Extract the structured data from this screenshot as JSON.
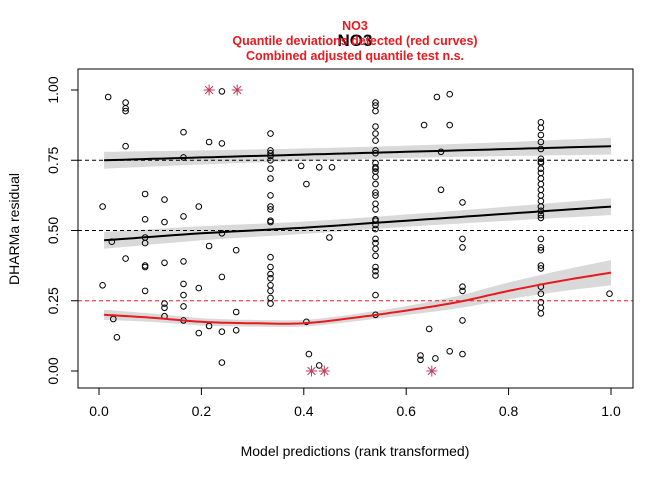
{
  "chart_data": {
    "type": "scatter",
    "title": "NO3",
    "subtitle_lines": [
      "NO3",
      "Quantile deviations detected (red curves)",
      "Combined adjusted quantile test n.s."
    ],
    "xlabel": "Model predictions (rank transformed)",
    "ylabel": "DHARMa residual",
    "xlim": [
      0,
      1
    ],
    "ylim": [
      0,
      1
    ],
    "x_ticks": [
      "0.0",
      "0.2",
      "0.4",
      "0.6",
      "0.8",
      "1.0"
    ],
    "y_ticks": [
      "0.00",
      "0.25",
      "0.50",
      "0.75",
      "1.00"
    ],
    "reference_lines": [
      0.25,
      0.5,
      0.75
    ],
    "colors": {
      "quantile_ok": "#000000",
      "quantile_deviation": "#e8191f",
      "band": "#d9d9d9",
      "outlier": "#c23b5a",
      "reference_ok": "#000000",
      "reference_deviation": "#e8191f"
    },
    "quantile_curves": [
      {
        "quantile": 0.25,
        "deviation": true,
        "x": [
          0.01,
          0.1,
          0.2,
          0.3,
          0.4,
          0.5,
          0.6,
          0.7,
          0.8,
          0.9,
          1.0
        ],
        "y": [
          0.2,
          0.19,
          0.175,
          0.17,
          0.17,
          0.19,
          0.215,
          0.245,
          0.285,
          0.32,
          0.35
        ],
        "band_halfwidth": [
          0.018,
          0.015,
          0.013,
          0.012,
          0.012,
          0.013,
          0.016,
          0.022,
          0.03,
          0.037,
          0.045
        ]
      },
      {
        "quantile": 0.5,
        "deviation": false,
        "x": [
          0.01,
          0.2,
          0.4,
          0.6,
          0.8,
          1.0
        ],
        "y": [
          0.465,
          0.49,
          0.51,
          0.535,
          0.56,
          0.585
        ],
        "band_halfwidth": [
          0.03,
          0.025,
          0.022,
          0.022,
          0.025,
          0.03
        ]
      },
      {
        "quantile": 0.75,
        "deviation": false,
        "x": [
          0.01,
          0.2,
          0.4,
          0.6,
          0.8,
          1.0
        ],
        "y": [
          0.75,
          0.76,
          0.77,
          0.78,
          0.79,
          0.8
        ],
        "band_halfwidth": [
          0.03,
          0.025,
          0.022,
          0.022,
          0.025,
          0.03
        ]
      }
    ],
    "points": [
      [
        0.007,
        0.585
      ],
      [
        0.007,
        0.305
      ],
      [
        0.018,
        0.975
      ],
      [
        0.025,
        0.46
      ],
      [
        0.028,
        0.185
      ],
      [
        0.035,
        0.12
      ],
      [
        0.052,
        0.955
      ],
      [
        0.052,
        0.935
      ],
      [
        0.052,
        0.925
      ],
      [
        0.052,
        0.8
      ],
      [
        0.052,
        0.4
      ],
      [
        0.09,
        0.63
      ],
      [
        0.09,
        0.54
      ],
      [
        0.09,
        0.475
      ],
      [
        0.09,
        0.455
      ],
      [
        0.09,
        0.375
      ],
      [
        0.09,
        0.37
      ],
      [
        0.09,
        0.285
      ],
      [
        0.128,
        0.61
      ],
      [
        0.128,
        0.53
      ],
      [
        0.128,
        0.385
      ],
      [
        0.128,
        0.24
      ],
      [
        0.128,
        0.225
      ],
      [
        0.128,
        0.195
      ],
      [
        0.165,
        0.85
      ],
      [
        0.165,
        0.76
      ],
      [
        0.165,
        0.55
      ],
      [
        0.165,
        0.39
      ],
      [
        0.165,
        0.31
      ],
      [
        0.165,
        0.27
      ],
      [
        0.165,
        0.23
      ],
      [
        0.165,
        0.18
      ],
      [
        0.195,
        0.585
      ],
      [
        0.195,
        0.295
      ],
      [
        0.195,
        0.135
      ],
      [
        0.215,
        0.815
      ],
      [
        0.215,
        0.445
      ],
      [
        0.215,
        0.16
      ],
      [
        0.24,
        0.995
      ],
      [
        0.24,
        0.81
      ],
      [
        0.24,
        0.49
      ],
      [
        0.24,
        0.335
      ],
      [
        0.24,
        0.14
      ],
      [
        0.24,
        0.03
      ],
      [
        0.268,
        0.43
      ],
      [
        0.268,
        0.21
      ],
      [
        0.268,
        0.145
      ],
      [
        0.335,
        0.845
      ],
      [
        0.335,
        0.785
      ],
      [
        0.335,
        0.775
      ],
      [
        0.335,
        0.765
      ],
      [
        0.335,
        0.75
      ],
      [
        0.335,
        0.72
      ],
      [
        0.335,
        0.685
      ],
      [
        0.335,
        0.625
      ],
      [
        0.335,
        0.585
      ],
      [
        0.335,
        0.575
      ],
      [
        0.335,
        0.535
      ],
      [
        0.335,
        0.53
      ],
      [
        0.335,
        0.405
      ],
      [
        0.335,
        0.37
      ],
      [
        0.335,
        0.345
      ],
      [
        0.335,
        0.33
      ],
      [
        0.335,
        0.305
      ],
      [
        0.335,
        0.285
      ],
      [
        0.335,
        0.26
      ],
      [
        0.335,
        0.24
      ],
      [
        0.395,
        0.73
      ],
      [
        0.405,
        0.665
      ],
      [
        0.405,
        0.175
      ],
      [
        0.41,
        0.06
      ],
      [
        0.43,
        0.725
      ],
      [
        0.43,
        0.02
      ],
      [
        0.455,
        0.725
      ],
      [
        0.45,
        0.475
      ],
      [
        0.54,
        0.955
      ],
      [
        0.54,
        0.945
      ],
      [
        0.54,
        0.925
      ],
      [
        0.54,
        0.87
      ],
      [
        0.54,
        0.845
      ],
      [
        0.54,
        0.82
      ],
      [
        0.54,
        0.785
      ],
      [
        0.54,
        0.775
      ],
      [
        0.54,
        0.74
      ],
      [
        0.54,
        0.725
      ],
      [
        0.54,
        0.72
      ],
      [
        0.54,
        0.71
      ],
      [
        0.54,
        0.69
      ],
      [
        0.54,
        0.665
      ],
      [
        0.54,
        0.635
      ],
      [
        0.54,
        0.625
      ],
      [
        0.54,
        0.595
      ],
      [
        0.54,
        0.575
      ],
      [
        0.54,
        0.54
      ],
      [
        0.54,
        0.535
      ],
      [
        0.54,
        0.52
      ],
      [
        0.54,
        0.505
      ],
      [
        0.54,
        0.47
      ],
      [
        0.54,
        0.455
      ],
      [
        0.54,
        0.435
      ],
      [
        0.54,
        0.41
      ],
      [
        0.54,
        0.37
      ],
      [
        0.54,
        0.355
      ],
      [
        0.54,
        0.34
      ],
      [
        0.54,
        0.27
      ],
      [
        0.54,
        0.2
      ],
      [
        0.635,
        0.875
      ],
      [
        0.628,
        0.055
      ],
      [
        0.628,
        0.04
      ],
      [
        0.645,
        0.15
      ],
      [
        0.657,
        0.045
      ],
      [
        0.66,
        0.975
      ],
      [
        0.668,
        0.78
      ],
      [
        0.668,
        0.645
      ],
      [
        0.685,
        0.985
      ],
      [
        0.685,
        0.875
      ],
      [
        0.685,
        0.07
      ],
      [
        0.71,
        0.6
      ],
      [
        0.71,
        0.47
      ],
      [
        0.71,
        0.44
      ],
      [
        0.71,
        0.3
      ],
      [
        0.71,
        0.285
      ],
      [
        0.71,
        0.18
      ],
      [
        0.71,
        0.06
      ],
      [
        0.863,
        0.885
      ],
      [
        0.863,
        0.865
      ],
      [
        0.863,
        0.84
      ],
      [
        0.863,
        0.815
      ],
      [
        0.863,
        0.79
      ],
      [
        0.863,
        0.755
      ],
      [
        0.863,
        0.745
      ],
      [
        0.863,
        0.74
      ],
      [
        0.863,
        0.72
      ],
      [
        0.863,
        0.705
      ],
      [
        0.863,
        0.685
      ],
      [
        0.863,
        0.665
      ],
      [
        0.863,
        0.645
      ],
      [
        0.863,
        0.625
      ],
      [
        0.863,
        0.605
      ],
      [
        0.863,
        0.585
      ],
      [
        0.863,
        0.57
      ],
      [
        0.863,
        0.555
      ],
      [
        0.863,
        0.545
      ],
      [
        0.863,
        0.47
      ],
      [
        0.863,
        0.44
      ],
      [
        0.863,
        0.43
      ],
      [
        0.863,
        0.375
      ],
      [
        0.863,
        0.365
      ],
      [
        0.863,
        0.3
      ],
      [
        0.863,
        0.275
      ],
      [
        0.863,
        0.245
      ],
      [
        0.863,
        0.225
      ],
      [
        0.863,
        0.205
      ],
      [
        0.997,
        0.275
      ]
    ],
    "outliers": [
      [
        0.215,
        1.0
      ],
      [
        0.27,
        1.0
      ],
      [
        0.415,
        0.0
      ],
      [
        0.44,
        0.0
      ],
      [
        0.65,
        0.0
      ]
    ]
  }
}
